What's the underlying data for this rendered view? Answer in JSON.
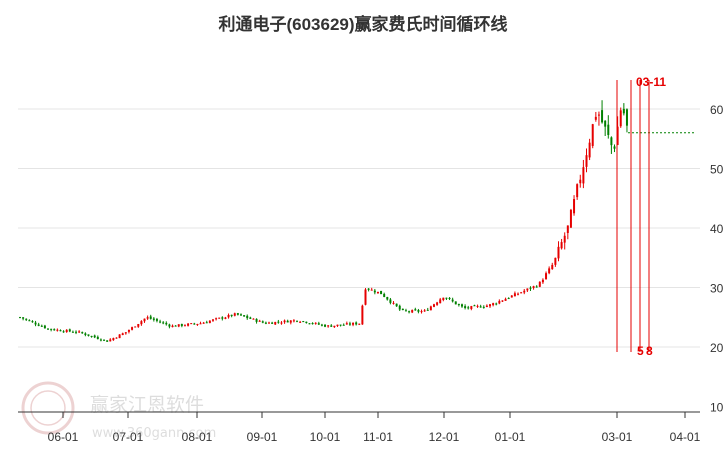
{
  "chart_data": {
    "type": "candlestick",
    "title": "利通电子(603629)赢家费氏时间循环线",
    "x_tick_labels": [
      "06-01",
      "07-01",
      "08-01",
      "09-01",
      "10-01",
      "11-01",
      "12-01",
      "01-01",
      "03-01",
      "04-01"
    ],
    "y_tick_labels": [
      "10",
      "20",
      "30",
      "40",
      "50",
      "60"
    ],
    "ylim": [
      10,
      66
    ],
    "grid": true,
    "colors": {
      "up": "#e60000",
      "down": "#008000",
      "cycle_line": "#e60000",
      "reference_line": "#008000",
      "grid": "#e4e4e4"
    },
    "price_series": [
      {
        "date": "05-16",
        "close": 25.0
      },
      {
        "date": "06-01",
        "close": 23.0
      },
      {
        "date": "06-15",
        "close": 22.5
      },
      {
        "date": "07-01",
        "close": 21.0
      },
      {
        "date": "07-10",
        "close": 22.5
      },
      {
        "date": "07-20",
        "close": 25.0
      },
      {
        "date": "08-01",
        "close": 23.5
      },
      {
        "date": "08-15",
        "close": 24.0
      },
      {
        "date": "09-01",
        "close": 25.5
      },
      {
        "date": "09-15",
        "close": 24.0
      },
      {
        "date": "10-01",
        "close": 24.5
      },
      {
        "date": "10-15",
        "close": 23.5
      },
      {
        "date": "10-31",
        "close": 24.0
      },
      {
        "date": "11-02",
        "close": 30.0
      },
      {
        "date": "11-10",
        "close": 29.0
      },
      {
        "date": "11-20",
        "close": 26.0
      },
      {
        "date": "12-01",
        "close": 26.0
      },
      {
        "date": "12-10",
        "close": 28.5
      },
      {
        "date": "12-20",
        "close": 26.5
      },
      {
        "date": "01-01",
        "close": 27.0
      },
      {
        "date": "01-15",
        "close": 29.0
      },
      {
        "date": "01-25",
        "close": 30.5
      },
      {
        "date": "02-01",
        "close": 34.0
      },
      {
        "date": "02-08",
        "close": 40.0
      },
      {
        "date": "02-15",
        "close": 50.0
      },
      {
        "date": "02-22",
        "close": 60.0
      },
      {
        "date": "03-01",
        "close": 53.0
      },
      {
        "date": "03-05",
        "close": 61.0
      },
      {
        "date": "03-08",
        "close": 56.0
      }
    ],
    "reference_line": {
      "value": 56
    },
    "cycle_lines": [
      {
        "label": "3"
      },
      {
        "label": "5"
      },
      {
        "label": "8"
      },
      {
        "label": "11"
      }
    ],
    "cycle_top_label": "03-11",
    "cycle_bottom_labels": [
      "5",
      "8"
    ]
  },
  "watermark": {
    "name": "赢家江恩软件",
    "url": "www.360gann.com"
  }
}
